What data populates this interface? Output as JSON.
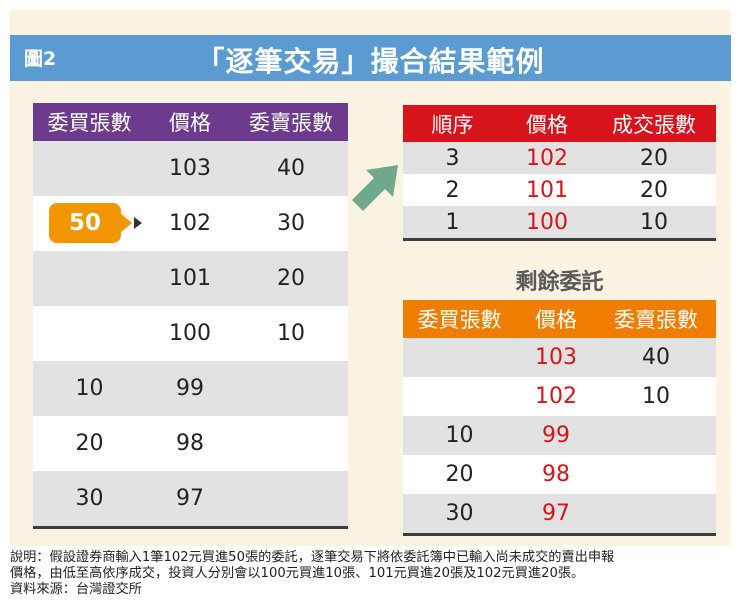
{
  "figure_label": "圖2",
  "title": "「逐筆交易」撮合結果範例",
  "order_book": {
    "headers": [
      "委買張數",
      "價格",
      "委賣張數"
    ],
    "rows": [
      {
        "buy": "",
        "price": "103",
        "sell": "40"
      },
      {
        "buy": "",
        "price": "102",
        "sell": "30"
      },
      {
        "buy": "",
        "price": "101",
        "sell": "20"
      },
      {
        "buy": "",
        "price": "100",
        "sell": "10"
      },
      {
        "buy": "10",
        "price": "99",
        "sell": ""
      },
      {
        "buy": "20",
        "price": "98",
        "sell": ""
      },
      {
        "buy": "30",
        "price": "97",
        "sell": ""
      }
    ]
  },
  "incoming_order": {
    "quantity": "50"
  },
  "trades": {
    "headers": [
      "順序",
      "價格",
      "成交張數"
    ],
    "rows": [
      {
        "seq": "3",
        "price": "102",
        "qty": "20"
      },
      {
        "seq": "2",
        "price": "101",
        "qty": "20"
      },
      {
        "seq": "1",
        "price": "100",
        "qty": "10"
      }
    ]
  },
  "remaining": {
    "title": "剩餘委託",
    "headers": [
      "委買張數",
      "價格",
      "委賣張數"
    ],
    "rows": [
      {
        "buy": "",
        "price": "103",
        "sell": "40"
      },
      {
        "buy": "",
        "price": "102",
        "sell": "10"
      },
      {
        "buy": "10",
        "price": "99",
        "sell": ""
      },
      {
        "buy": "20",
        "price": "98",
        "sell": ""
      },
      {
        "buy": "30",
        "price": "97",
        "sell": ""
      }
    ]
  },
  "notes": {
    "line1": "說明：假設證券商輸入1筆102元買進50張的委託，逐筆交易下將依委託簿中已輸入尚未成交的賣出申報",
    "line2": "價格，由低至高依序成交，投資人分別會以100元買進10張、101元買進20張及102元買進20張。",
    "source": "資料來源：台灣證交所"
  },
  "colors": {
    "title_bar": "#5b9bd1",
    "order_book_header": "#6d3b8e",
    "trades_header": "#d7141b",
    "remaining_header": "#ee7d00",
    "callout": "#f29600",
    "arrow": "#6fa88a",
    "trade_price": "#d7141b"
  }
}
